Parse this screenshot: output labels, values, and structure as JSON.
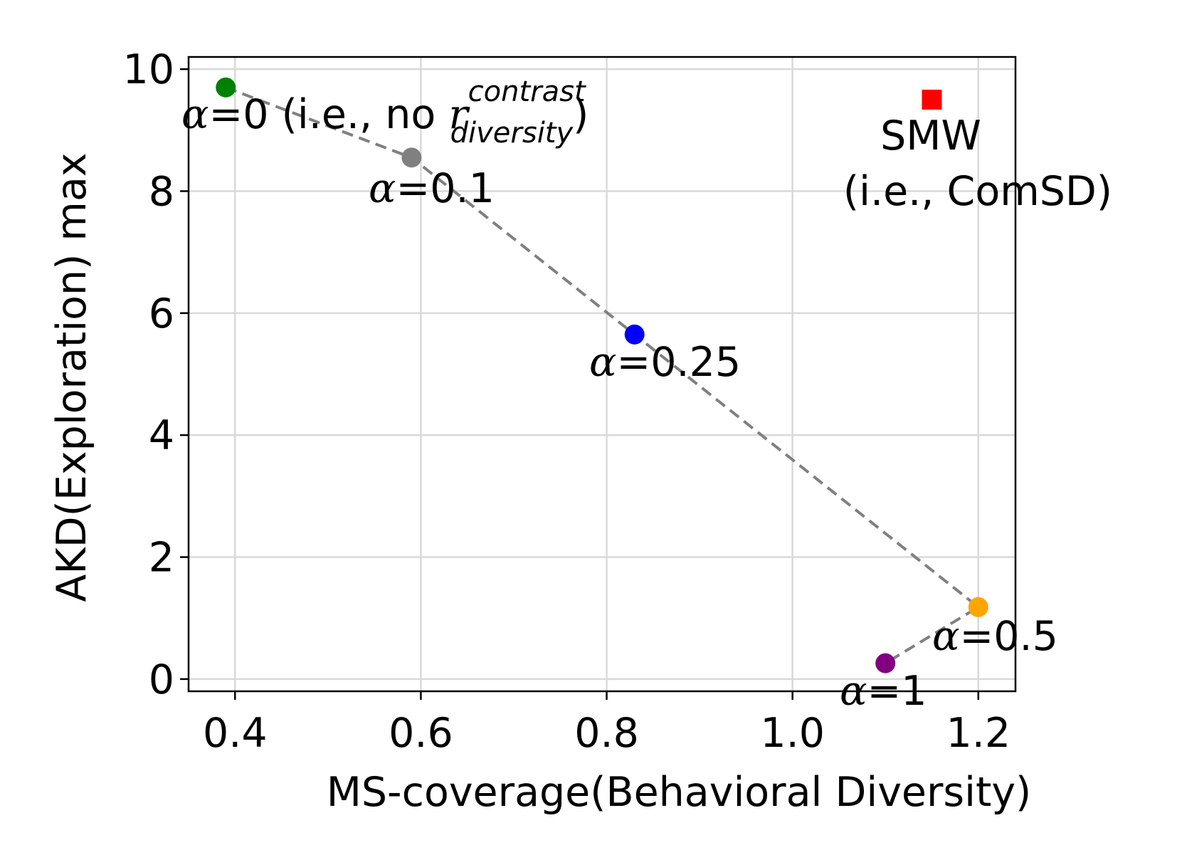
{
  "chart_data": {
    "type": "scatter",
    "xlabel": "MS-coverage(Behavioral Diversity)",
    "ylabel": "AKD(Exploration) max",
    "xlim": [
      0.35,
      1.24
    ],
    "ylim": [
      -0.2,
      10.2
    ],
    "xticks": [
      0.4,
      0.6,
      0.8,
      1.0,
      1.2
    ],
    "xtick_labels": [
      "0.4",
      "0.6",
      "0.8",
      "1.0",
      "1.2"
    ],
    "yticks": [
      0,
      2,
      4,
      6,
      8,
      10
    ],
    "ytick_labels": [
      "0",
      "2",
      "4",
      "6",
      "8",
      "10"
    ],
    "grid": true,
    "line": {
      "style": "dashed",
      "color": "#808080",
      "x": [
        0.39,
        0.59,
        0.83,
        1.2,
        1.1
      ],
      "y": [
        9.7,
        8.55,
        5.65,
        1.18,
        0.26
      ]
    },
    "points": [
      {
        "name": "alpha-0",
        "x": 0.39,
        "y": 9.7,
        "color": "#008000",
        "marker": "circle",
        "label_prefix": "α",
        "label_value": "=0 (i.e., no ",
        "label_r": "r",
        "label_sup": "contrast",
        "label_sub": "diversity",
        "label_close": ")"
      },
      {
        "name": "alpha-0.1",
        "x": 0.59,
        "y": 8.55,
        "color": "#808080",
        "marker": "circle",
        "label_prefix": "α",
        "label_value": "=0.1"
      },
      {
        "name": "alpha-0.25",
        "x": 0.83,
        "y": 5.65,
        "color": "#0000ff",
        "marker": "circle",
        "label_prefix": "α",
        "label_value": "=0.25"
      },
      {
        "name": "alpha-0.5",
        "x": 1.2,
        "y": 1.18,
        "color": "#ffa500",
        "marker": "circle",
        "label_prefix": "α",
        "label_value": "=0.5"
      },
      {
        "name": "alpha-1",
        "x": 1.1,
        "y": 0.26,
        "color": "#800080",
        "marker": "circle",
        "label_prefix": "α",
        "label_value": "=1"
      },
      {
        "name": "smw",
        "x": 1.15,
        "y": 9.5,
        "color": "#ff0000",
        "marker": "square",
        "label_line1": "SMW",
        "label_line2": "(i.e., ComSD)"
      }
    ]
  }
}
